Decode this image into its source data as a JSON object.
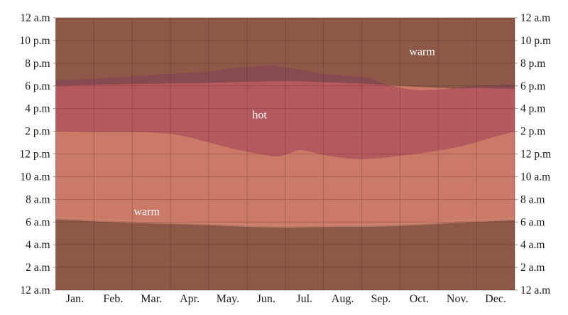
{
  "chart_data": {
    "type": "area",
    "title": "",
    "description": "Hourly temperature bands by month; y-axis is time of day (midnight to midnight), x-axis is months; colored bands show warm/hot periods, darkened at night",
    "x_axis": {
      "months": [
        "Jan.",
        "Feb.",
        "Mar.",
        "Apr.",
        "May.",
        "Jun.",
        "Jul.",
        "Aug.",
        "Sep.",
        "Oct.",
        "Nov.",
        "Dec."
      ]
    },
    "y_axis": {
      "ticks_top_to_bottom": [
        "12 a.m",
        "10 p.m",
        "8 p.m",
        "6 p.m",
        "4 p.m",
        "2 p.m",
        "12 p.m",
        "10 a.m",
        "8 a.m",
        "6 a.m",
        "4 a.m",
        "2 a.m",
        "12 a.m"
      ],
      "range_hours": [
        0,
        24
      ],
      "grid_step_hours": 2,
      "shown_on_both_sides": true
    },
    "grid": true,
    "colors": {
      "warm_day": "#ca7a66",
      "hot_day": "#b45a5f",
      "warm_night": "#8d5848",
      "hot_night": "#874a50",
      "twilight_edge": "#d28a76",
      "gridline": "rgba(70,25,15,0.25)",
      "frame": "rgba(70,25,15,0.4)",
      "axis_text": "#1c1c1c",
      "annotation_text": "#ffffff",
      "background": "#ffffff"
    },
    "series": [
      {
        "name": "sunrise_hour",
        "meaning": "boundary between dark (night) shading below and daylight warm band, in hours",
        "points": [
          [
            0,
            6.35
          ],
          [
            0.5,
            6.28
          ],
          [
            1,
            6.18
          ],
          [
            1.5,
            6.1
          ],
          [
            2,
            6.04
          ],
          [
            2.5,
            5.99
          ],
          [
            3,
            5.95
          ],
          [
            3.5,
            5.9
          ],
          [
            4,
            5.84
          ],
          [
            4.5,
            5.77
          ],
          [
            5,
            5.7
          ],
          [
            5.5,
            5.66
          ],
          [
            6,
            5.63
          ],
          [
            6.5,
            5.65
          ],
          [
            7,
            5.68
          ],
          [
            7.5,
            5.7
          ],
          [
            8,
            5.7
          ],
          [
            8.5,
            5.73
          ],
          [
            9,
            5.78
          ],
          [
            9.5,
            5.86
          ],
          [
            10,
            5.95
          ],
          [
            10.5,
            6.04
          ],
          [
            11,
            6.12
          ],
          [
            11.5,
            6.2
          ],
          [
            12,
            6.28
          ]
        ]
      },
      {
        "name": "sunset_hour",
        "meaning": "boundary between bright daylight bands and night-darkened bands, in hours",
        "points": [
          [
            0,
            18.02
          ],
          [
            0.5,
            18.05
          ],
          [
            1,
            18.09
          ],
          [
            1.5,
            18.12
          ],
          [
            2,
            18.16
          ],
          [
            2.5,
            18.19
          ],
          [
            3,
            18.22
          ],
          [
            3.5,
            18.24
          ],
          [
            4,
            18.27
          ],
          [
            4.5,
            18.31
          ],
          [
            5,
            18.36
          ],
          [
            5.5,
            18.4
          ],
          [
            6,
            18.42
          ],
          [
            6.5,
            18.39
          ],
          [
            7,
            18.33
          ],
          [
            7.5,
            18.27
          ],
          [
            8,
            18.2
          ],
          [
            8.5,
            18.1
          ],
          [
            9,
            18.0
          ],
          [
            9.5,
            17.9
          ],
          [
            10,
            17.83
          ],
          [
            10.5,
            17.78
          ],
          [
            11,
            17.8
          ],
          [
            11.5,
            17.77
          ],
          [
            12,
            17.74
          ]
        ]
      },
      {
        "name": "hot_band_start_hour",
        "meaning": "lower edge of the hot band (hot begins), in hours",
        "points": [
          [
            0,
            14.02
          ],
          [
            0.5,
            13.98
          ],
          [
            1,
            13.96
          ],
          [
            1.5,
            13.96
          ],
          [
            2,
            13.95
          ],
          [
            2.5,
            13.9
          ],
          [
            3,
            13.78
          ],
          [
            3.4,
            13.55
          ],
          [
            3.8,
            13.2
          ],
          [
            4.2,
            12.85
          ],
          [
            4.6,
            12.5
          ],
          [
            5,
            12.2
          ],
          [
            5.4,
            11.95
          ],
          [
            5.8,
            11.78
          ],
          [
            6.1,
            12.05
          ],
          [
            6.35,
            12.35
          ],
          [
            6.6,
            12.25
          ],
          [
            6.9,
            12.0
          ],
          [
            7.3,
            11.75
          ],
          [
            7.7,
            11.6
          ],
          [
            8,
            11.55
          ],
          [
            8.5,
            11.65
          ],
          [
            9,
            11.85
          ],
          [
            9.5,
            12.05
          ],
          [
            10,
            12.3
          ],
          [
            10.4,
            12.55
          ],
          [
            10.8,
            12.85
          ],
          [
            11.2,
            13.25
          ],
          [
            11.6,
            13.65
          ],
          [
            12,
            13.97
          ]
        ]
      },
      {
        "name": "hot_band_end_hour",
        "meaning": "upper edge of the hot band (hot ends), in hours; peaks near 8 p.m in June",
        "points": [
          [
            0,
            18.5
          ],
          [
            0.5,
            18.56
          ],
          [
            1,
            18.63
          ],
          [
            1.5,
            18.72
          ],
          [
            2,
            18.83
          ],
          [
            2.5,
            18.95
          ],
          [
            3,
            19.06
          ],
          [
            3.5,
            19.16
          ],
          [
            4,
            19.26
          ],
          [
            4.5,
            19.5
          ],
          [
            5,
            19.65
          ],
          [
            5.4,
            19.78
          ],
          [
            5.7,
            19.8
          ],
          [
            6,
            19.62
          ],
          [
            6.5,
            19.35
          ],
          [
            7,
            19.05
          ],
          [
            7.5,
            18.92
          ],
          [
            8,
            18.78
          ],
          [
            8.3,
            18.6
          ],
          [
            8.6,
            18.15
          ],
          [
            9,
            17.82
          ],
          [
            9.4,
            17.63
          ],
          [
            9.8,
            17.62
          ],
          [
            10.2,
            17.72
          ],
          [
            10.6,
            17.88
          ],
          [
            11,
            18.0
          ],
          [
            11.5,
            18.06
          ],
          [
            12,
            18.12
          ]
        ]
      }
    ],
    "annotations": [
      {
        "text": "warm",
        "month_x": 9.58,
        "hour": 20.95,
        "region": "night-warm band, upper right"
      },
      {
        "text": "hot",
        "month_x": 5.33,
        "hour": 15.35,
        "region": "hot band, center"
      },
      {
        "text": "warm",
        "month_x": 2.38,
        "hour": 6.85,
        "region": "daylight warm band, lower left"
      }
    ]
  }
}
